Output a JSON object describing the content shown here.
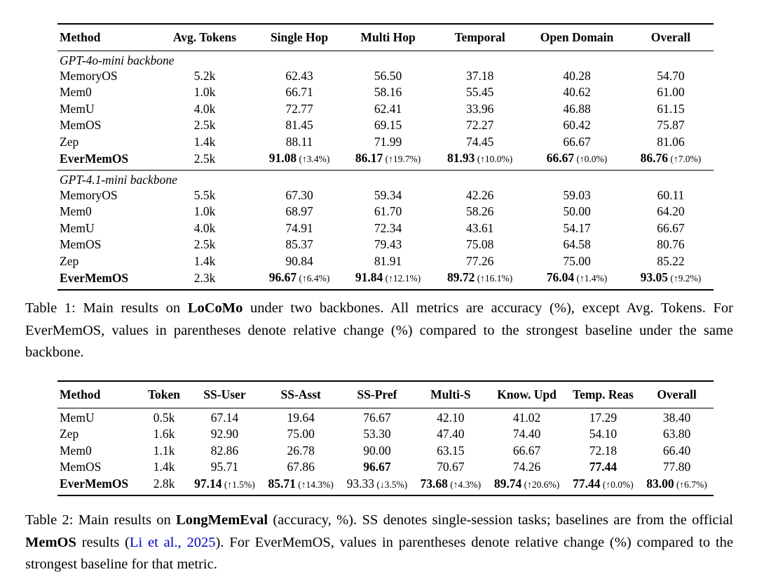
{
  "page": {
    "background": "#ffffff",
    "text_color": "#000000",
    "link_color": "#0000bb"
  },
  "table1": {
    "columns": [
      {
        "label": "Method",
        "align": "left"
      },
      {
        "label": "Avg. Tokens"
      },
      {
        "label": "Single Hop"
      },
      {
        "label": "Multi Hop"
      },
      {
        "label": "Temporal"
      },
      {
        "label": "Open Domain"
      },
      {
        "label": "Overall"
      }
    ],
    "sections": [
      {
        "group_label": "GPT-4o-mini backbone",
        "rows": [
          {
            "method": "MemoryOS",
            "cells": [
              "5.2k",
              "62.43",
              "56.50",
              "37.18",
              "40.28",
              "54.70"
            ]
          },
          {
            "method": "Mem0",
            "cells": [
              "1.0k",
              "66.71",
              "58.16",
              "55.45",
              "40.62",
              "61.00"
            ]
          },
          {
            "method": "MemU",
            "cells": [
              "4.0k",
              "72.77",
              "62.41",
              "33.96",
              "46.88",
              "61.15"
            ]
          },
          {
            "method": "MemOS",
            "cells": [
              "2.5k",
              "81.45",
              "69.15",
              "72.27",
              "60.42",
              "75.87"
            ]
          },
          {
            "method": "Zep",
            "cells": [
              "1.4k",
              "88.11",
              "71.99",
              "74.45",
              "66.67",
              "81.06"
            ]
          },
          {
            "method": "EverMemOS",
            "method_bold": true,
            "cells": [
              "2.5k",
              {
                "v": "91.08",
                "bold": true,
                "note": "(↑3.4%)"
              },
              {
                "v": "86.17",
                "bold": true,
                "note": "(↑19.7%)"
              },
              {
                "v": "81.93",
                "bold": true,
                "note": "(↑10.0%)"
              },
              {
                "v": "66.67",
                "bold": true,
                "note": "(↑0.0%)"
              },
              {
                "v": "86.76",
                "bold": true,
                "note": "(↑7.0%)"
              }
            ]
          }
        ]
      },
      {
        "group_label": "GPT-4.1-mini backbone",
        "rows": [
          {
            "method": "MemoryOS",
            "cells": [
              "5.5k",
              "67.30",
              "59.34",
              "42.26",
              "59.03",
              "60.11"
            ]
          },
          {
            "method": "Mem0",
            "cells": [
              "1.0k",
              "68.97",
              "61.70",
              "58.26",
              "50.00",
              "64.20"
            ]
          },
          {
            "method": "MemU",
            "cells": [
              "4.0k",
              "74.91",
              "72.34",
              "43.61",
              "54.17",
              "66.67"
            ]
          },
          {
            "method": "MemOS",
            "cells": [
              "2.5k",
              "85.37",
              "79.43",
              "75.08",
              "64.58",
              "80.76"
            ]
          },
          {
            "method": "Zep",
            "cells": [
              "1.4k",
              "90.84",
              "81.91",
              "77.26",
              "75.00",
              "85.22"
            ]
          },
          {
            "method": "EverMemOS",
            "method_bold": true,
            "cells": [
              "2.3k",
              {
                "v": "96.67",
                "bold": true,
                "note": "(↑6.4%)"
              },
              {
                "v": "91.84",
                "bold": true,
                "note": "(↑12.1%)"
              },
              {
                "v": "89.72",
                "bold": true,
                "note": "(↑16.1%)"
              },
              {
                "v": "76.04",
                "bold": true,
                "note": "(↑1.4%)"
              },
              {
                "v": "93.05",
                "bold": true,
                "note": "(↑9.2%)"
              }
            ]
          }
        ]
      }
    ],
    "caption": [
      {
        "t": "Table 1: Main results on "
      },
      {
        "t": "LoCoMo",
        "b": true
      },
      {
        "t": " under two backbones. All metrics are accuracy (%), except Avg. Tokens. For EverMemOS, values in parentheses denote relative change (%) compared to the strongest baseline under the same backbone."
      }
    ]
  },
  "table2": {
    "columns": [
      {
        "label": "Method",
        "align": "left"
      },
      {
        "label": "Token"
      },
      {
        "label": "SS-User"
      },
      {
        "label": "SS-Asst"
      },
      {
        "label": "SS-Pref"
      },
      {
        "label": "Multi-S"
      },
      {
        "label": "Know. Upd"
      },
      {
        "label": "Temp. Reas"
      },
      {
        "label": "Overall"
      }
    ],
    "sections": [
      {
        "rows": [
          {
            "method": "MemU",
            "cells": [
              "0.5k",
              "67.14",
              "19.64",
              "76.67",
              "42.10",
              "41.02",
              "17.29",
              "38.40"
            ]
          },
          {
            "method": "Zep",
            "cells": [
              "1.6k",
              "92.90",
              "75.00",
              "53.30",
              "47.40",
              "74.40",
              "54.10",
              "63.80"
            ]
          },
          {
            "method": "Mem0",
            "cells": [
              "1.1k",
              "82.86",
              "26.78",
              "90.00",
              "63.15",
              "66.67",
              "72.18",
              "66.40"
            ]
          },
          {
            "method": "MemOS",
            "cells": [
              "1.4k",
              "95.71",
              "67.86",
              {
                "v": "96.67",
                "bold": true
              },
              "70.67",
              "74.26",
              {
                "v": "77.44",
                "bold": true
              },
              "77.80"
            ]
          },
          {
            "method": "EverMemOS",
            "method_bold": true,
            "cells": [
              "2.8k",
              {
                "v": "97.14",
                "bold": true,
                "note": "(↑1.5%)"
              },
              {
                "v": "85.71",
                "bold": true,
                "note": "(↑14.3%)"
              },
              {
                "v": "93.33",
                "bold": false,
                "note": "(↓3.5%)"
              },
              {
                "v": "73.68",
                "bold": true,
                "note": "(↑4.3%)"
              },
              {
                "v": "89.74",
                "bold": true,
                "note": "(↑20.6%)"
              },
              {
                "v": "77.44",
                "bold": true,
                "note": "(↑0.0%)"
              },
              {
                "v": "83.00",
                "bold": true,
                "note": "(↑6.7%)"
              }
            ]
          }
        ]
      }
    ],
    "caption": [
      {
        "t": "Table 2: Main results on "
      },
      {
        "t": "LongMemEval",
        "b": true
      },
      {
        "t": " (accuracy, %). SS denotes single-session tasks; baselines are from the official "
      },
      {
        "t": "MemOS",
        "b": true
      },
      {
        "t": " results ("
      },
      {
        "t": "Li et al., 2025",
        "link": true
      },
      {
        "t": "). For EverMemOS, values in parentheses denote relative change (%) compared to the strongest baseline for that metric."
      }
    ]
  }
}
